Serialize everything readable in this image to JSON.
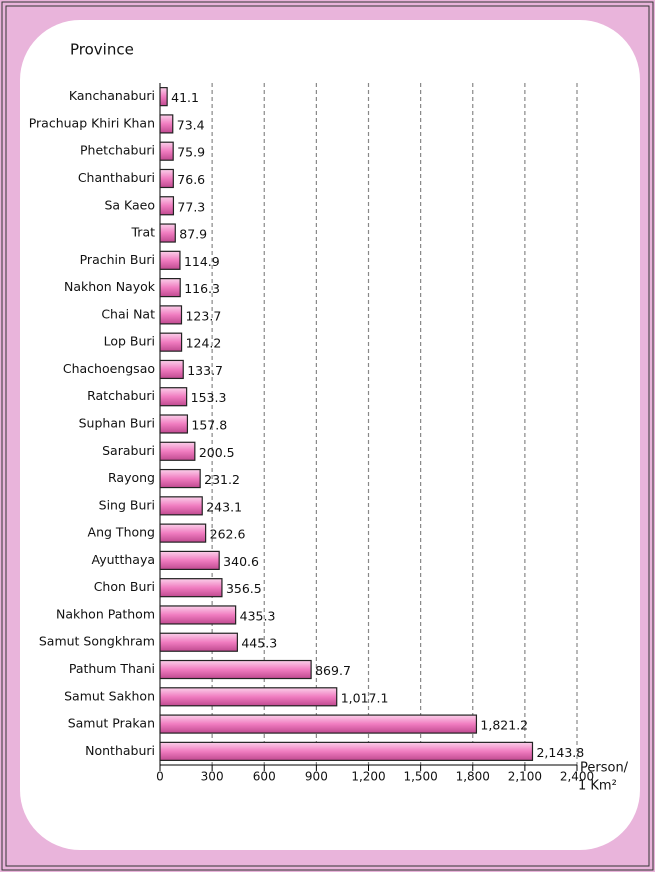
{
  "chart_data": {
    "type": "barh",
    "y_label": "Province",
    "x_label": [
      "Person/",
      "1 Km²"
    ],
    "categories": [
      "Kanchanaburi",
      "Prachuap Khiri Khan",
      "Phetchaburi",
      "Chanthaburi",
      "Sa Kaeo",
      "Trat",
      "Prachin Buri",
      "Nakhon Nayok",
      "Chai Nat",
      "Lop Buri",
      "Chachoengsao",
      "Ratchaburi",
      "Suphan Buri",
      "Saraburi",
      "Rayong",
      "Sing Buri",
      "Ang Thong",
      "Ayutthaya",
      "Chon Buri",
      "Nakhon Pathom",
      "Samut Songkhram",
      "Pathum Thani",
      "Samut Sakhon",
      "Samut Prakan",
      "Nonthaburi"
    ],
    "values": [
      41.1,
      73.4,
      75.9,
      76.6,
      77.3,
      87.9,
      114.9,
      116.3,
      123.7,
      124.2,
      133.7,
      153.3,
      157.8,
      200.5,
      231.2,
      243.1,
      262.6,
      340.6,
      356.5,
      435.3,
      445.3,
      869.7,
      1017.1,
      1821.2,
      2143.8
    ],
    "value_labels": [
      "41.1",
      "73.4",
      "75.9",
      "76.6",
      "77.3",
      "87.9",
      "114.9",
      "116.3",
      "123.7",
      "124.2",
      "133.7",
      "153.3",
      "157.8",
      "200.5",
      "231.2",
      "243.1",
      "262.6",
      "340.6",
      "356.5",
      "435.3",
      "445.3",
      "869.7",
      "1,017.1",
      "1,821.2",
      "2,143.8"
    ],
    "color": "#f07cc0",
    "xlim": [
      0,
      2400
    ],
    "xticks": [
      0,
      300,
      600,
      900,
      {
        "value": 1200,
        "label": "1,200"
      },
      {
        "value": 1500,
        "label": "1,500"
      },
      {
        "value": 1800,
        "label": "1,800"
      },
      {
        "value": 2100,
        "label": "2,100"
      },
      {
        "value": 2400,
        "label": "2,400"
      }
    ],
    "grid": true
  }
}
